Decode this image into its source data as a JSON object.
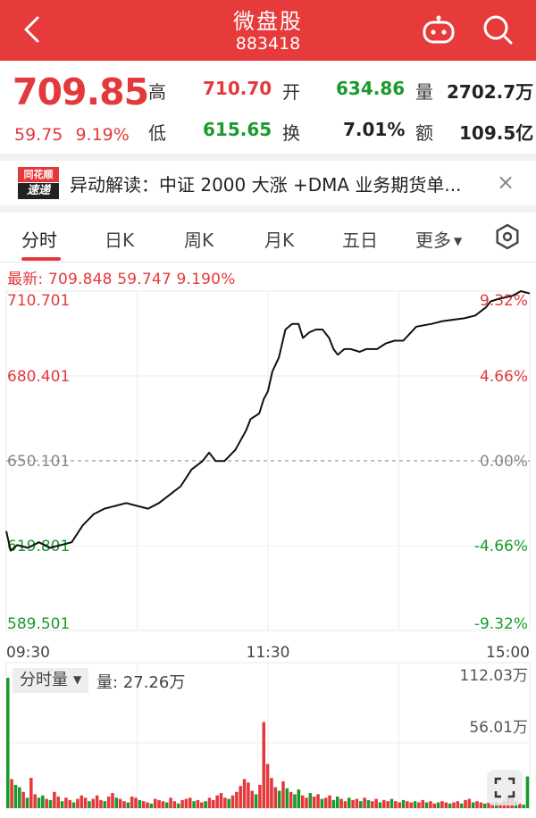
{
  "header": {
    "title": "微盘股",
    "code": "883418"
  },
  "quote": {
    "price": "709.85",
    "change": "59.75",
    "change_pct": "9.19%",
    "high_label": "高",
    "high": "710.70",
    "open_label": "开",
    "open": "634.86",
    "volume_label": "量",
    "volume": "2702.7万",
    "low_label": "低",
    "low": "615.65",
    "turnover_label": "换",
    "turnover": "7.01%",
    "amount_label": "额",
    "amount": "109.5亿"
  },
  "news": {
    "logo_top": "同花顺",
    "logo_bottom": "速递",
    "text": "异动解读：中证 2000 大涨 +DMA 业务期货单..."
  },
  "tabs": [
    "分时",
    "日K",
    "周K",
    "月K",
    "五日",
    "更多"
  ],
  "latest_line": "最新: 709.848  59.747  9.190%",
  "volume_panel": {
    "selector_label": "分时量",
    "volume_text": "量: 27.26万",
    "max_label": "112.03万",
    "mid_label": "56.01万"
  },
  "colors": {
    "up": "#e4393c",
    "down": "#1a9a2c",
    "header": "#e63a3b"
  },
  "chart_data": {
    "type": "line",
    "x_labels": [
      "09:30",
      "11:30",
      "15:00"
    ],
    "y_left_ticks": [
      "710.701",
      "680.401",
      "650.101",
      "619.801",
      "589.501"
    ],
    "y_right_ticks": [
      "9.32%",
      "4.66%",
      "0.00%",
      "-4.66%",
      "-9.32%"
    ],
    "ylim": [
      589.501,
      710.701
    ],
    "prev_close": 650.101,
    "price_series": [
      {
        "t": 0,
        "v": 625
      },
      {
        "t": 2,
        "v": 618
      },
      {
        "t": 5,
        "v": 620
      },
      {
        "t": 10,
        "v": 619
      },
      {
        "t": 15,
        "v": 621
      },
      {
        "t": 20,
        "v": 619
      },
      {
        "t": 25,
        "v": 620
      },
      {
        "t": 30,
        "v": 621
      },
      {
        "t": 35,
        "v": 627
      },
      {
        "t": 40,
        "v": 631
      },
      {
        "t": 45,
        "v": 633
      },
      {
        "t": 50,
        "v": 634
      },
      {
        "t": 55,
        "v": 635
      },
      {
        "t": 60,
        "v": 634
      },
      {
        "t": 65,
        "v": 633
      },
      {
        "t": 70,
        "v": 635
      },
      {
        "t": 75,
        "v": 638
      },
      {
        "t": 80,
        "v": 641
      },
      {
        "t": 85,
        "v": 647
      },
      {
        "t": 90,
        "v": 650
      },
      {
        "t": 93,
        "v": 653
      },
      {
        "t": 96,
        "v": 650
      },
      {
        "t": 100,
        "v": 650
      },
      {
        "t": 105,
        "v": 654
      },
      {
        "t": 110,
        "v": 661
      },
      {
        "t": 112,
        "v": 665
      },
      {
        "t": 116,
        "v": 667
      },
      {
        "t": 118,
        "v": 672
      },
      {
        "t": 120,
        "v": 675
      },
      {
        "t": 122,
        "v": 682
      },
      {
        "t": 125,
        "v": 687
      },
      {
        "t": 128,
        "v": 697
      },
      {
        "t": 131,
        "v": 699
      },
      {
        "t": 134,
        "v": 699
      },
      {
        "t": 136,
        "v": 694
      },
      {
        "t": 139,
        "v": 696
      },
      {
        "t": 142,
        "v": 697
      },
      {
        "t": 145,
        "v": 697
      },
      {
        "t": 148,
        "v": 694
      },
      {
        "t": 150,
        "v": 690
      },
      {
        "t": 152,
        "v": 688
      },
      {
        "t": 155,
        "v": 690
      },
      {
        "t": 158,
        "v": 690
      },
      {
        "t": 162,
        "v": 689
      },
      {
        "t": 165,
        "v": 690
      },
      {
        "t": 170,
        "v": 690
      },
      {
        "t": 174,
        "v": 692
      },
      {
        "t": 178,
        "v": 693
      },
      {
        "t": 182,
        "v": 693
      },
      {
        "t": 188,
        "v": 698
      },
      {
        "t": 195,
        "v": 699
      },
      {
        "t": 200,
        "v": 700
      },
      {
        "t": 210,
        "v": 701
      },
      {
        "t": 215,
        "v": 702
      },
      {
        "t": 220,
        "v": 705
      },
      {
        "t": 222,
        "v": 707
      },
      {
        "t": 226,
        "v": 708
      },
      {
        "t": 232,
        "v": 709
      },
      {
        "t": 236,
        "v": 710.7
      },
      {
        "t": 240,
        "v": 709.85
      }
    ],
    "volume_ylim": [
      0,
      1120300
    ],
    "volume_bars": [
      {
        "v": 1120300,
        "c": "green"
      },
      {
        "v": 250000,
        "c": "red"
      },
      {
        "v": 200000,
        "c": "green"
      },
      {
        "v": 180000,
        "c": "green"
      },
      {
        "v": 140000,
        "c": "red"
      },
      {
        "v": 90000,
        "c": "green"
      },
      {
        "v": 260000,
        "c": "red"
      },
      {
        "v": 120000,
        "c": "red"
      },
      {
        "v": 90000,
        "c": "green"
      },
      {
        "v": 110000,
        "c": "green"
      },
      {
        "v": 80000,
        "c": "red"
      },
      {
        "v": 70000,
        "c": "green"
      },
      {
        "v": 140000,
        "c": "red"
      },
      {
        "v": 100000,
        "c": "red"
      },
      {
        "v": 60000,
        "c": "green"
      },
      {
        "v": 90000,
        "c": "red"
      },
      {
        "v": 70000,
        "c": "red"
      },
      {
        "v": 50000,
        "c": "green"
      },
      {
        "v": 80000,
        "c": "red"
      },
      {
        "v": 110000,
        "c": "red"
      },
      {
        "v": 90000,
        "c": "red"
      },
      {
        "v": 60000,
        "c": "green"
      },
      {
        "v": 80000,
        "c": "red"
      },
      {
        "v": 110000,
        "c": "red"
      },
      {
        "v": 70000,
        "c": "red"
      },
      {
        "v": 60000,
        "c": "green"
      },
      {
        "v": 100000,
        "c": "red"
      },
      {
        "v": 130000,
        "c": "red"
      },
      {
        "v": 90000,
        "c": "green"
      },
      {
        "v": 80000,
        "c": "red"
      },
      {
        "v": 60000,
        "c": "red"
      },
      {
        "v": 50000,
        "c": "green"
      },
      {
        "v": 100000,
        "c": "red"
      },
      {
        "v": 90000,
        "c": "red"
      },
      {
        "v": 70000,
        "c": "green"
      },
      {
        "v": 60000,
        "c": "red"
      },
      {
        "v": 50000,
        "c": "red"
      },
      {
        "v": 40000,
        "c": "green"
      },
      {
        "v": 80000,
        "c": "red"
      },
      {
        "v": 70000,
        "c": "red"
      },
      {
        "v": 60000,
        "c": "red"
      },
      {
        "v": 50000,
        "c": "green"
      },
      {
        "v": 90000,
        "c": "red"
      },
      {
        "v": 60000,
        "c": "red"
      },
      {
        "v": 40000,
        "c": "green"
      },
      {
        "v": 70000,
        "c": "red"
      },
      {
        "v": 80000,
        "c": "red"
      },
      {
        "v": 90000,
        "c": "red"
      },
      {
        "v": 60000,
        "c": "green"
      },
      {
        "v": 70000,
        "c": "red"
      },
      {
        "v": 50000,
        "c": "red"
      },
      {
        "v": 60000,
        "c": "green"
      },
      {
        "v": 90000,
        "c": "red"
      },
      {
        "v": 70000,
        "c": "red"
      },
      {
        "v": 110000,
        "c": "red"
      },
      {
        "v": 130000,
        "c": "red"
      },
      {
        "v": 90000,
        "c": "red"
      },
      {
        "v": 80000,
        "c": "green"
      },
      {
        "v": 110000,
        "c": "red"
      },
      {
        "v": 140000,
        "c": "red"
      },
      {
        "v": 190000,
        "c": "red"
      },
      {
        "v": 250000,
        "c": "red"
      },
      {
        "v": 220000,
        "c": "red"
      },
      {
        "v": 150000,
        "c": "red"
      },
      {
        "v": 120000,
        "c": "green"
      },
      {
        "v": 200000,
        "c": "red"
      },
      {
        "v": 740000,
        "c": "red"
      },
      {
        "v": 380000,
        "c": "red"
      },
      {
        "v": 260000,
        "c": "red"
      },
      {
        "v": 180000,
        "c": "red"
      },
      {
        "v": 150000,
        "c": "green"
      },
      {
        "v": 230000,
        "c": "red"
      },
      {
        "v": 170000,
        "c": "green"
      },
      {
        "v": 140000,
        "c": "red"
      },
      {
        "v": 120000,
        "c": "green"
      },
      {
        "v": 160000,
        "c": "green"
      },
      {
        "v": 110000,
        "c": "red"
      },
      {
        "v": 90000,
        "c": "red"
      },
      {
        "v": 130000,
        "c": "green"
      },
      {
        "v": 100000,
        "c": "red"
      },
      {
        "v": 120000,
        "c": "red"
      },
      {
        "v": 80000,
        "c": "green"
      },
      {
        "v": 90000,
        "c": "red"
      },
      {
        "v": 110000,
        "c": "red"
      },
      {
        "v": 70000,
        "c": "green"
      },
      {
        "v": 100000,
        "c": "green"
      },
      {
        "v": 80000,
        "c": "red"
      },
      {
        "v": 60000,
        "c": "red"
      },
      {
        "v": 90000,
        "c": "green"
      },
      {
        "v": 70000,
        "c": "red"
      },
      {
        "v": 80000,
        "c": "red"
      },
      {
        "v": 60000,
        "c": "green"
      },
      {
        "v": 90000,
        "c": "red"
      },
      {
        "v": 70000,
        "c": "green"
      },
      {
        "v": 60000,
        "c": "red"
      },
      {
        "v": 80000,
        "c": "red"
      },
      {
        "v": 50000,
        "c": "green"
      },
      {
        "v": 70000,
        "c": "red"
      },
      {
        "v": 60000,
        "c": "red"
      },
      {
        "v": 80000,
        "c": "green"
      },
      {
        "v": 60000,
        "c": "red"
      },
      {
        "v": 50000,
        "c": "red"
      },
      {
        "v": 70000,
        "c": "green"
      },
      {
        "v": 60000,
        "c": "red"
      },
      {
        "v": 50000,
        "c": "red"
      },
      {
        "v": 60000,
        "c": "green"
      },
      {
        "v": 50000,
        "c": "red"
      },
      {
        "v": 70000,
        "c": "red"
      },
      {
        "v": 50000,
        "c": "green"
      },
      {
        "v": 60000,
        "c": "red"
      },
      {
        "v": 40000,
        "c": "red"
      },
      {
        "v": 50000,
        "c": "green"
      },
      {
        "v": 60000,
        "c": "red"
      },
      {
        "v": 50000,
        "c": "red"
      },
      {
        "v": 40000,
        "c": "green"
      },
      {
        "v": 50000,
        "c": "red"
      },
      {
        "v": 60000,
        "c": "red"
      },
      {
        "v": 40000,
        "c": "green"
      },
      {
        "v": 70000,
        "c": "red"
      },
      {
        "v": 80000,
        "c": "red"
      },
      {
        "v": 50000,
        "c": "green"
      },
      {
        "v": 60000,
        "c": "red"
      },
      {
        "v": 50000,
        "c": "red"
      },
      {
        "v": 40000,
        "c": "green"
      },
      {
        "v": 50000,
        "c": "red"
      },
      {
        "v": 40000,
        "c": "red"
      },
      {
        "v": 50000,
        "c": "green"
      },
      {
        "v": 40000,
        "c": "red"
      },
      {
        "v": 60000,
        "c": "red"
      },
      {
        "v": 110000,
        "c": "red"
      },
      {
        "v": 80000,
        "c": "red"
      },
      {
        "v": 60000,
        "c": "green"
      },
      {
        "v": 40000,
        "c": "red"
      },
      {
        "v": 30000,
        "c": "green"
      },
      {
        "v": 272600,
        "c": "green"
      }
    ]
  }
}
